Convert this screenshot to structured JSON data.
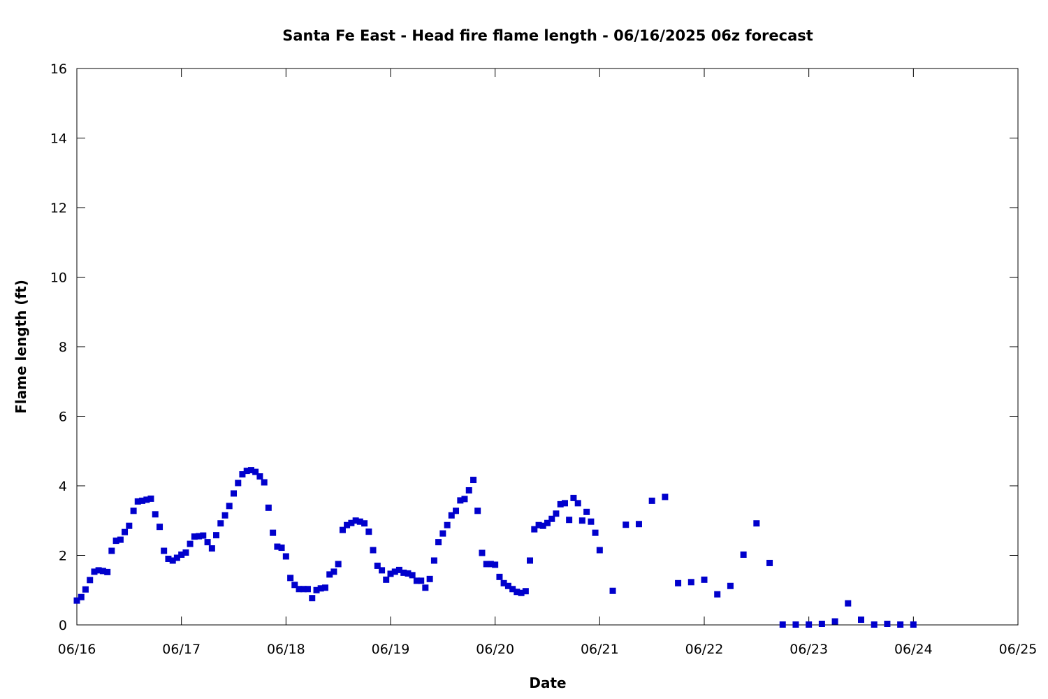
{
  "chart_data": {
    "type": "scatter",
    "title": "Santa Fe East - Head fire flame length - 06/16/2025 06z forecast",
    "xlabel": "Date",
    "ylabel": "Flame length (ft)",
    "x_unit": "day offset from 06/16",
    "xlim": [
      0,
      9
    ],
    "ylim": [
      0,
      16
    ],
    "xticks": [
      0,
      1,
      2,
      3,
      4,
      5,
      6,
      7,
      8,
      9
    ],
    "xtick_labels": [
      "06/16",
      "06/17",
      "06/18",
      "06/19",
      "06/20",
      "06/21",
      "06/22",
      "06/23",
      "06/24",
      "06/25"
    ],
    "yticks": [
      0,
      2,
      4,
      6,
      8,
      10,
      12,
      14,
      16
    ],
    "ytick_labels": [
      "0",
      "2",
      "4",
      "6",
      "8",
      "10",
      "12",
      "14",
      "16"
    ],
    "grid": false,
    "legend": "none",
    "marker": "square",
    "color": "#0000cc",
    "series": [
      {
        "points": [
          [
            0.0,
            0.7
          ],
          [
            0.042,
            0.8
          ],
          [
            0.083,
            1.02
          ],
          [
            0.125,
            1.29
          ],
          [
            0.167,
            1.53
          ],
          [
            0.208,
            1.57
          ],
          [
            0.25,
            1.55
          ],
          [
            0.292,
            1.52
          ],
          [
            0.333,
            2.13
          ],
          [
            0.375,
            2.42
          ],
          [
            0.417,
            2.45
          ],
          [
            0.458,
            2.67
          ],
          [
            0.5,
            2.85
          ],
          [
            0.542,
            3.28
          ],
          [
            0.583,
            3.55
          ],
          [
            0.625,
            3.57
          ],
          [
            0.667,
            3.6
          ],
          [
            0.708,
            3.63
          ],
          [
            0.75,
            3.18
          ],
          [
            0.792,
            2.82
          ],
          [
            0.833,
            2.13
          ],
          [
            0.875,
            1.9
          ],
          [
            0.917,
            1.85
          ],
          [
            0.958,
            1.93
          ],
          [
            1.0,
            2.02
          ],
          [
            1.042,
            2.08
          ],
          [
            1.083,
            2.33
          ],
          [
            1.125,
            2.54
          ],
          [
            1.167,
            2.55
          ],
          [
            1.208,
            2.57
          ],
          [
            1.25,
            2.38
          ],
          [
            1.292,
            2.2
          ],
          [
            1.333,
            2.58
          ],
          [
            1.375,
            2.92
          ],
          [
            1.417,
            3.15
          ],
          [
            1.458,
            3.42
          ],
          [
            1.5,
            3.78
          ],
          [
            1.542,
            4.08
          ],
          [
            1.583,
            4.33
          ],
          [
            1.625,
            4.43
          ],
          [
            1.667,
            4.45
          ],
          [
            1.708,
            4.4
          ],
          [
            1.75,
            4.27
          ],
          [
            1.792,
            4.1
          ],
          [
            1.833,
            3.37
          ],
          [
            1.875,
            2.65
          ],
          [
            1.917,
            2.25
          ],
          [
            1.958,
            2.22
          ],
          [
            2.0,
            1.97
          ],
          [
            2.042,
            1.35
          ],
          [
            2.083,
            1.15
          ],
          [
            2.125,
            1.03
          ],
          [
            2.167,
            1.03
          ],
          [
            2.208,
            1.03
          ],
          [
            2.25,
            0.77
          ],
          [
            2.292,
            1.0
          ],
          [
            2.333,
            1.05
          ],
          [
            2.375,
            1.07
          ],
          [
            2.417,
            1.45
          ],
          [
            2.458,
            1.53
          ],
          [
            2.5,
            1.75
          ],
          [
            2.542,
            2.73
          ],
          [
            2.583,
            2.87
          ],
          [
            2.625,
            2.93
          ],
          [
            2.667,
            3.0
          ],
          [
            2.708,
            2.97
          ],
          [
            2.75,
            2.92
          ],
          [
            2.792,
            2.68
          ],
          [
            2.833,
            2.15
          ],
          [
            2.875,
            1.7
          ],
          [
            2.917,
            1.57
          ],
          [
            2.958,
            1.3
          ],
          [
            3.0,
            1.47
          ],
          [
            3.042,
            1.53
          ],
          [
            3.083,
            1.58
          ],
          [
            3.125,
            1.5
          ],
          [
            3.167,
            1.48
          ],
          [
            3.208,
            1.43
          ],
          [
            3.25,
            1.27
          ],
          [
            3.292,
            1.27
          ],
          [
            3.333,
            1.07
          ],
          [
            3.375,
            1.32
          ],
          [
            3.417,
            1.85
          ],
          [
            3.458,
            2.38
          ],
          [
            3.5,
            2.63
          ],
          [
            3.542,
            2.87
          ],
          [
            3.583,
            3.15
          ],
          [
            3.625,
            3.28
          ],
          [
            3.667,
            3.58
          ],
          [
            3.708,
            3.62
          ],
          [
            3.75,
            3.87
          ],
          [
            3.792,
            4.17
          ],
          [
            3.833,
            3.28
          ],
          [
            3.875,
            2.07
          ],
          [
            3.917,
            1.75
          ],
          [
            3.958,
            1.75
          ],
          [
            4.0,
            1.73
          ],
          [
            4.042,
            1.38
          ],
          [
            4.083,
            1.2
          ],
          [
            4.125,
            1.12
          ],
          [
            4.167,
            1.03
          ],
          [
            4.208,
            0.95
          ],
          [
            4.25,
            0.92
          ],
          [
            4.292,
            0.97
          ],
          [
            4.333,
            1.85
          ],
          [
            4.375,
            2.75
          ],
          [
            4.417,
            2.87
          ],
          [
            4.458,
            2.85
          ],
          [
            4.5,
            2.93
          ],
          [
            4.542,
            3.05
          ],
          [
            4.583,
            3.2
          ],
          [
            4.625,
            3.47
          ],
          [
            4.667,
            3.5
          ],
          [
            4.708,
            3.02
          ],
          [
            4.75,
            3.65
          ],
          [
            4.792,
            3.5
          ],
          [
            4.833,
            3.0
          ],
          [
            4.875,
            3.25
          ],
          [
            4.917,
            2.97
          ],
          [
            4.958,
            2.65
          ],
          [
            5.0,
            2.15
          ],
          [
            5.125,
            0.98
          ],
          [
            5.25,
            2.88
          ],
          [
            5.375,
            2.9
          ],
          [
            5.5,
            3.57
          ],
          [
            5.625,
            3.68
          ],
          [
            5.75,
            1.2
          ],
          [
            5.875,
            1.23
          ],
          [
            6.0,
            1.3
          ],
          [
            6.125,
            0.88
          ],
          [
            6.25,
            1.12
          ],
          [
            6.375,
            2.02
          ],
          [
            6.5,
            2.92
          ],
          [
            6.625,
            1.78
          ],
          [
            6.75,
            0.01
          ],
          [
            6.875,
            0.01
          ],
          [
            7.0,
            0.01
          ],
          [
            7.125,
            0.03
          ],
          [
            7.25,
            0.1
          ],
          [
            7.375,
            0.62
          ],
          [
            7.5,
            0.15
          ],
          [
            7.625,
            0.01
          ],
          [
            7.75,
            0.03
          ],
          [
            7.875,
            0.01
          ],
          [
            8.0,
            0.01
          ]
        ]
      }
    ]
  }
}
